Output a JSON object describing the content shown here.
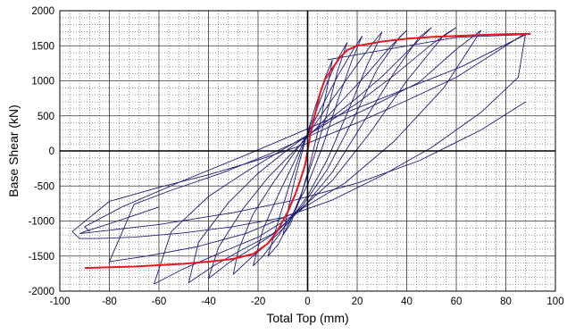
{
  "chart_data": {
    "type": "line",
    "title": "",
    "xlabel": "Total Top (mm)",
    "ylabel": "Base Shear (kN)",
    "xlim": [
      -100,
      100
    ],
    "ylim": [
      -2000,
      2000
    ],
    "x_ticks": [
      -100,
      -80,
      -60,
      -40,
      -20,
      0,
      20,
      40,
      60,
      80,
      100
    ],
    "y_ticks": [
      -2000,
      -1500,
      -1000,
      -500,
      0,
      500,
      1000,
      1500,
      2000
    ],
    "grid": true,
    "legend": "none",
    "colors": {
      "hysteresis": "#1f1f78",
      "envelope": "#e8161e",
      "zero_axis": "#000000"
    },
    "series": [
      {
        "color": "#e8161e",
        "x": [
          -90,
          -70,
          -50,
          -40,
          -30,
          -22,
          -16,
          -12,
          -8,
          -5,
          -3,
          -1,
          0,
          1,
          3,
          5,
          7,
          10,
          13,
          16,
          20,
          30,
          40,
          50,
          60,
          70,
          80,
          90
        ],
        "y": [
          -1670,
          -1650,
          -1610,
          -1580,
          -1540,
          -1470,
          -1320,
          -1130,
          -870,
          -620,
          -420,
          -200,
          0,
          220,
          520,
          820,
          1020,
          1180,
          1330,
          1440,
          1500,
          1560,
          1600,
          1625,
          1640,
          1655,
          1665,
          1670
        ]
      },
      {
        "color": "#1f1f78",
        "x": [
          88,
          80,
          60,
          40,
          20,
          0,
          -20,
          -40,
          -60,
          -80,
          -95,
          -92,
          -85,
          -70,
          -50,
          -30,
          -10,
          10,
          30,
          50,
          70,
          85,
          88
        ],
        "y": [
          1680,
          1500,
          1050,
          720,
          400,
          110,
          -130,
          -340,
          -520,
          -720,
          -1150,
          -1250,
          -1250,
          -1230,
          -1170,
          -1080,
          -950,
          -700,
          -350,
          50,
          550,
          1050,
          1680
        ]
      },
      {
        "color": "#1f1f78",
        "x": [
          70,
          60,
          45,
          25,
          5,
          -15,
          -35,
          -55,
          -70,
          -80,
          -65,
          -45,
          -25,
          -5,
          15,
          35,
          55,
          70
        ],
        "y": [
          1720,
          1450,
          980,
          620,
          280,
          -40,
          -320,
          -560,
          -760,
          -1580,
          -1500,
          -1370,
          -1180,
          -880,
          -460,
          140,
          900,
          1720
        ]
      },
      {
        "color": "#1f1f78",
        "x": [
          60,
          50,
          35,
          20,
          5,
          -10,
          -25,
          -40,
          -55,
          -62,
          -50,
          -35,
          -20,
          -5,
          10,
          25,
          40,
          55,
          60
        ],
        "y": [
          1760,
          1520,
          1080,
          680,
          330,
          20,
          -300,
          -650,
          -1150,
          -1900,
          -1680,
          -1450,
          -1230,
          -900,
          -420,
          250,
          1000,
          1650,
          1760
        ]
      },
      {
        "color": "#1f1f78",
        "x": [
          50,
          42,
          30,
          18,
          5,
          -8,
          -20,
          -32,
          -44,
          -48,
          -38,
          -26,
          -14,
          -2,
          10,
          22,
          35,
          45,
          50
        ],
        "y": [
          1760,
          1480,
          1060,
          700,
          350,
          20,
          -320,
          -740,
          -1300,
          -1880,
          -1640,
          -1400,
          -1180,
          -820,
          -300,
          380,
          1120,
          1620,
          1760
        ]
      },
      {
        "color": "#1f1f78",
        "x": [
          40,
          33,
          24,
          14,
          4,
          -6,
          -16,
          -26,
          -36,
          -40,
          -32,
          -22,
          -12,
          -2,
          8,
          18,
          28,
          37,
          40
        ],
        "y": [
          1720,
          1470,
          1100,
          720,
          340,
          -20,
          -380,
          -820,
          -1380,
          -1820,
          -1600,
          -1380,
          -1140,
          -780,
          -260,
          420,
          1160,
          1620,
          1720
        ]
      },
      {
        "color": "#1f1f78",
        "x": [
          30,
          25,
          18,
          10,
          2,
          -6,
          -14,
          -22,
          -28,
          -30,
          -24,
          -16,
          -8,
          0,
          8,
          16,
          24,
          29,
          30
        ],
        "y": [
          1700,
          1480,
          1130,
          740,
          330,
          -60,
          -460,
          -900,
          -1420,
          -1760,
          -1560,
          -1320,
          -1040,
          -640,
          -120,
          540,
          1220,
          1600,
          1700
        ]
      },
      {
        "color": "#1f1f78",
        "x": [
          22,
          18,
          12,
          6,
          0,
          -6,
          -12,
          -18,
          -22,
          -18,
          -12,
          -6,
          0,
          6,
          12,
          18,
          22
        ],
        "y": [
          1640,
          1420,
          1060,
          650,
          240,
          -200,
          -640,
          -1120,
          -1640,
          -1500,
          -1220,
          -900,
          -480,
          60,
          700,
          1300,
          1640
        ]
      },
      {
        "color": "#1f1f78",
        "x": [
          16,
          12,
          7,
          2,
          -3,
          -8,
          -12,
          -16,
          -12,
          -7,
          -2,
          3,
          8,
          12,
          16
        ],
        "y": [
          1550,
          1300,
          900,
          440,
          -40,
          -560,
          -1020,
          -1500,
          -1340,
          -1000,
          -560,
          -40,
          560,
          1130,
          1550
        ]
      },
      {
        "color": "#1f1f78",
        "x": [
          10,
          7,
          3,
          -1,
          -5,
          -8,
          -10,
          -7,
          -3,
          1,
          5,
          8,
          10
        ],
        "y": [
          1300,
          1040,
          620,
          140,
          -380,
          -860,
          -1200,
          -1050,
          -680,
          -180,
          400,
          920,
          1300
        ]
      },
      {
        "color": "#1f1f78",
        "x": [
          8,
          60,
          88,
          62,
          35,
          12,
          -5,
          -25,
          -50,
          -75,
          -90,
          -88
        ],
        "y": [
          1300,
          1620,
          1660,
          1200,
          820,
          500,
          240,
          -60,
          -420,
          -800,
          -1080,
          -1150
        ]
      },
      {
        "color": "#1f1f78",
        "x": [
          -60,
          -70,
          -80,
          -90,
          -92,
          -60,
          -30,
          -5,
          20,
          45,
          70,
          88
        ],
        "y": [
          -800,
          -920,
          -1040,
          -1150,
          -1180,
          -1050,
          -880,
          -700,
          -460,
          -140,
          300,
          700
        ]
      }
    ]
  }
}
